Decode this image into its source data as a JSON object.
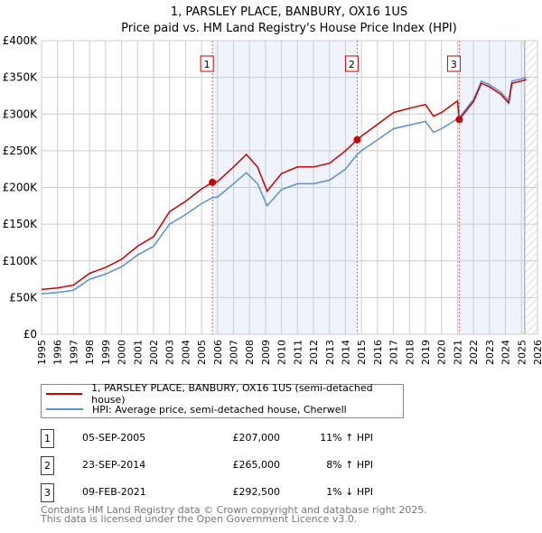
{
  "chart_data": {
    "type": "line",
    "title": "1, PARSLEY PLACE, BANBURY, OX16 1US",
    "subtitle": "Price paid vs. HM Land Registry's House Price Index (HPI)",
    "xlabel": "",
    "ylabel": "",
    "xlim": [
      1995,
      2026
    ],
    "ylim": [
      0,
      400000
    ],
    "x_ticks": [
      "1995",
      "1996",
      "1997",
      "1998",
      "1999",
      "2000",
      "2001",
      "2002",
      "2003",
      "2004",
      "2005",
      "2006",
      "2007",
      "2008",
      "2009",
      "2010",
      "2011",
      "2012",
      "2013",
      "2014",
      "2015",
      "2016",
      "2017",
      "2018",
      "2019",
      "2020",
      "2021",
      "2022",
      "2023",
      "2024",
      "2025",
      "2026"
    ],
    "y_ticks": [
      {
        "v": 0,
        "label": "£0"
      },
      {
        "v": 50000,
        "label": "£50K"
      },
      {
        "v": 100000,
        "label": "£100K"
      },
      {
        "v": 150000,
        "label": "£150K"
      },
      {
        "v": 200000,
        "label": "£200K"
      },
      {
        "v": 250000,
        "label": "£250K"
      },
      {
        "v": 300000,
        "label": "£300K"
      },
      {
        "v": 350000,
        "label": "£350K"
      },
      {
        "v": 400000,
        "label": "£400K"
      }
    ],
    "grid": true,
    "series": [
      {
        "name": "1, PARSLEY PLACE, BANBURY, OX16 1US (semi-detached house)",
        "color": "#cc0000",
        "x": [
          1995,
          1996,
          1997,
          1998,
          1999,
          2000,
          2001,
          2002,
          2003,
          2004,
          2005,
          2005.68,
          2006,
          2007,
          2007.8,
          2008.5,
          2009.1,
          2010,
          2011,
          2012,
          2013,
          2014,
          2014.73,
          2015,
          2016,
          2017,
          2018,
          2019,
          2019.5,
          2020,
          2021.0,
          2021.11,
          2022,
          2022.5,
          2023,
          2023.7,
          2024.2,
          2024.4,
          2025,
          2025.3
        ],
        "y": [
          61000,
          63000,
          67000,
          83000,
          91000,
          102000,
          120000,
          133000,
          167000,
          181000,
          198000,
          207000,
          208000,
          228000,
          245000,
          228000,
          195000,
          219000,
          228000,
          228000,
          233000,
          250000,
          265000,
          270000,
          286000,
          302000,
          308000,
          313000,
          297000,
          302000,
          318000,
          292500,
          317000,
          342000,
          337000,
          327000,
          315000,
          342000,
          345000,
          347000
        ]
      },
      {
        "name": "HPI: Average price, semi-detached house, Cherwell",
        "color": "#5b8fd4",
        "x": [
          1995,
          1996,
          1997,
          1998,
          1999,
          2000,
          2001,
          2002,
          2003,
          2004,
          2005,
          2005.68,
          2006,
          2007,
          2007.8,
          2008.5,
          2009.1,
          2010,
          2011,
          2012,
          2013,
          2014,
          2014.73,
          2015,
          2016,
          2017,
          2018,
          2019,
          2019.5,
          2020,
          2021.11,
          2022,
          2022.5,
          2023,
          2023.7,
          2024.2,
          2024.4,
          2025,
          2025.3
        ],
        "y": [
          55000,
          57000,
          60000,
          75000,
          82000,
          92000,
          108000,
          120000,
          150000,
          163000,
          178000,
          186000,
          187000,
          205000,
          220000,
          205000,
          175000,
          197000,
          205000,
          205000,
          210000,
          225000,
          245000,
          250000,
          265000,
          280000,
          285000,
          290000,
          275000,
          280000,
          295000,
          320000,
          345000,
          340000,
          330000,
          318000,
          345000,
          348000,
          350000
        ]
      }
    ],
    "sales": [
      {
        "n": "1",
        "x": 2005.68,
        "y": 207000,
        "date": "05-SEP-2005",
        "price": "£207,000",
        "hpi": "11% ↑ HPI"
      },
      {
        "n": "2",
        "x": 2014.73,
        "y": 265000,
        "date": "23-SEP-2014",
        "price": "£265,000",
        "hpi": "8% ↑ HPI"
      },
      {
        "n": "3",
        "x": 2021.11,
        "y": 292500,
        "date": "09-FEB-2021",
        "price": "£292,500",
        "hpi": "1% ↓ HPI"
      }
    ],
    "shaded_ranges": [
      [
        2005.68,
        2014.73
      ],
      [
        2021.11,
        2025.2
      ]
    ],
    "forecast_from": 2025.2,
    "legend_placement": "below"
  },
  "footer": {
    "line1": "Contains HM Land Registry data © Crown copyright and database right 2025.",
    "line2": "This data is licensed under the Open Government Licence v3.0."
  }
}
